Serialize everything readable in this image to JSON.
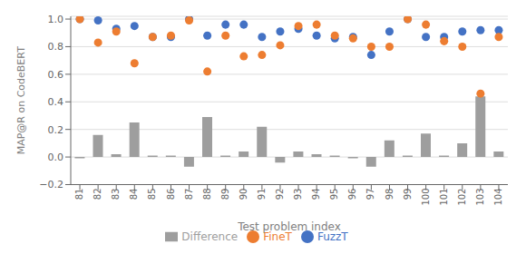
{
  "chart_data": {
    "type": "bar",
    "xlabel": "Test problem index",
    "ylabel": "MAP@R on CodeBERT",
    "categories": [
      81,
      82,
      83,
      84,
      85,
      86,
      87,
      88,
      89,
      90,
      91,
      92,
      93,
      94,
      95,
      96,
      97,
      98,
      99,
      100,
      101,
      102,
      103,
      104
    ],
    "series": [
      {
        "name": "Difference",
        "type": "bar",
        "color": "#9E9E9E",
        "values": [
          -0.01,
          0.16,
          0.02,
          0.25,
          0.01,
          0.01,
          -0.07,
          0.29,
          0.01,
          0.04,
          0.22,
          -0.04,
          0.04,
          0.02,
          0.01,
          -0.01,
          -0.07,
          0.12,
          0.01,
          0.17,
          0.01,
          0.1,
          0.44,
          0.04
        ]
      },
      {
        "name": "FuzzT",
        "type": "scatter",
        "color": "#4472C4",
        "values": [
          1.0,
          0.99,
          0.93,
          0.95,
          0.87,
          0.87,
          1.0,
          0.88,
          0.96,
          0.96,
          0.87,
          0.91,
          0.93,
          0.88,
          0.86,
          0.87,
          0.74,
          0.91,
          1.0,
          0.87,
          0.87,
          0.91,
          0.92,
          0.92
        ]
      },
      {
        "name": "FineT",
        "type": "scatter",
        "color": "#ED7D31",
        "values": [
          1.0,
          0.83,
          0.91,
          0.68,
          0.87,
          0.88,
          0.99,
          0.62,
          0.88,
          0.73,
          0.74,
          0.81,
          0.95,
          0.96,
          0.88,
          0.86,
          0.8,
          0.8,
          1.0,
          0.96,
          0.84,
          0.8,
          0.46,
          0.87
        ]
      }
    ],
    "ylim": [
      -0.2,
      1.02
    ],
    "yticks": [
      {
        "value": -0.2,
        "label": "−0.2"
      },
      {
        "value": 0,
        "label": "0.0"
      },
      0.2,
      0.4,
      0.6,
      0.8,
      {
        "value": 1,
        "label": "1.0"
      }
    ],
    "grid": true,
    "legend": "bottom"
  }
}
